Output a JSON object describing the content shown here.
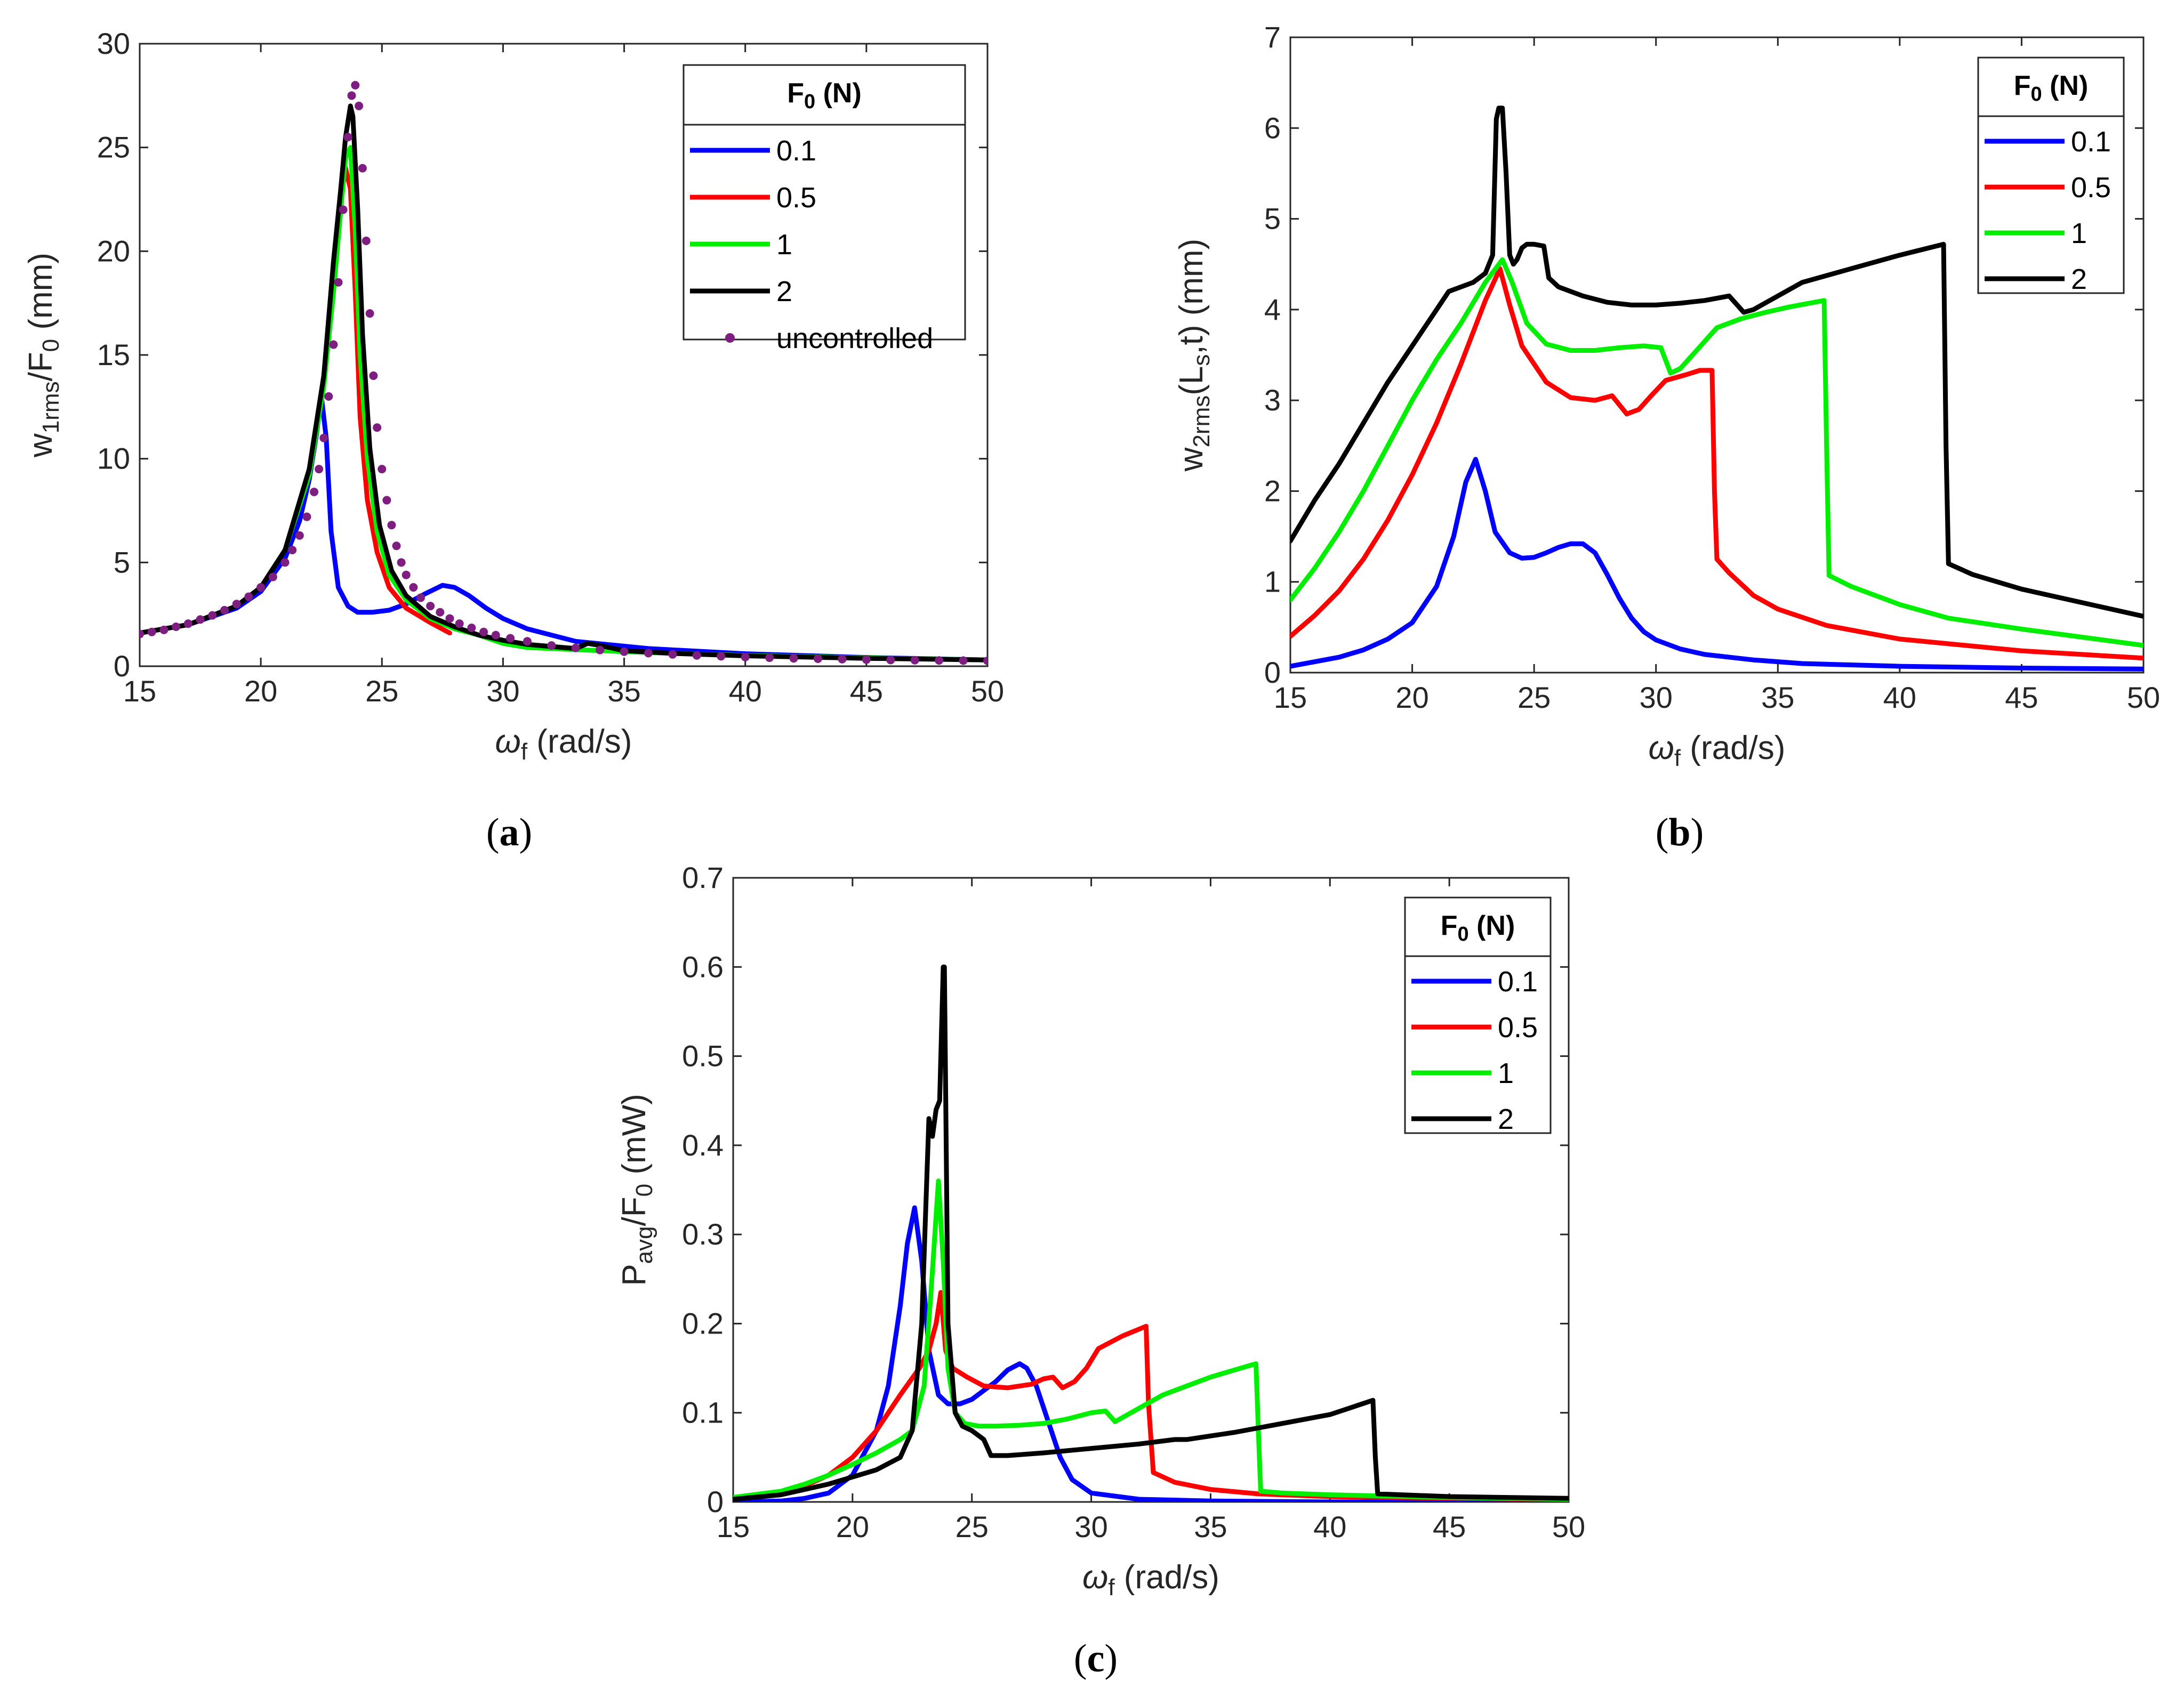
{
  "figure": {
    "captions": [
      {
        "open": "(",
        "label": "a",
        "close": ")"
      },
      {
        "open": "(",
        "label": "b",
        "close": ")"
      },
      {
        "open": "(",
        "label": "c",
        "close": ")"
      }
    ]
  },
  "legend": {
    "title_main": "F",
    "title_sub": "0",
    "title_unit": " (N)",
    "uncontrolled_label": "uncontrolled"
  },
  "colors": {
    "s01": "#0000ff",
    "s05": "#ff0000",
    "s1": "#00ee00",
    "s2": "#000000",
    "uncontrolled": "#7e1e80"
  },
  "chart_data": [
    {
      "id": "a",
      "type": "line",
      "title": "",
      "xlabel": {
        "main": "ω",
        "sub": "f",
        "rest": " (rad/s)"
      },
      "ylabel": {
        "main": "w",
        "sub": "1rms",
        "rest": "/F",
        "sub2": "0",
        "rest2": " (mm)"
      },
      "xlim": [
        15,
        50
      ],
      "ylim": [
        0,
        30
      ],
      "xticks": [
        15,
        20,
        25,
        30,
        35,
        40,
        45,
        50
      ],
      "yticks": [
        0,
        5,
        10,
        15,
        20,
        25,
        30
      ],
      "legend_position": "top-right",
      "series": [
        {
          "name": "0.1",
          "color_key": "s01",
          "x": [
            15,
            17,
            19,
            20,
            21,
            21.6,
            22,
            22.3,
            22.5,
            22.7,
            22.9,
            23.2,
            23.6,
            24,
            24.6,
            25.3,
            26,
            26.8,
            27.5,
            28,
            28.6,
            29.3,
            30,
            31,
            33,
            36,
            40,
            45,
            50
          ],
          "y": [
            1.6,
            2.0,
            2.8,
            3.6,
            5.2,
            7.0,
            9.0,
            11.2,
            13.0,
            11.0,
            6.5,
            3.8,
            2.9,
            2.6,
            2.6,
            2.7,
            3.0,
            3.5,
            3.9,
            3.8,
            3.4,
            2.8,
            2.3,
            1.8,
            1.2,
            0.85,
            0.6,
            0.42,
            0.3
          ]
        },
        {
          "name": "0.5",
          "color_key": "s05",
          "x": [
            15,
            17,
            19,
            20,
            21,
            22,
            22.6,
            23,
            23.3,
            23.5,
            23.7,
            23.9,
            24.1,
            24.4,
            24.8,
            25.3,
            26,
            27,
            27.8
          ],
          "y": [
            1.6,
            2.0,
            2.9,
            3.8,
            5.6,
            9.5,
            14.0,
            19.0,
            22.5,
            24.0,
            23.0,
            18.0,
            12.0,
            8.0,
            5.5,
            3.8,
            2.8,
            2.1,
            1.6
          ]
        },
        {
          "name": "1",
          "color_key": "s1",
          "x": [
            15,
            17,
            19,
            20,
            21,
            22,
            22.6,
            23,
            23.3,
            23.5,
            23.7,
            23.9,
            24.1,
            24.4,
            24.8,
            25.3,
            26,
            27,
            28,
            29,
            30,
            31,
            32,
            33,
            34,
            35,
            37,
            40,
            45,
            50
          ],
          "y": [
            1.6,
            2.0,
            2.9,
            3.8,
            5.6,
            9.2,
            13.5,
            18.0,
            22.0,
            24.5,
            25.0,
            21.0,
            15.0,
            10.0,
            6.5,
            4.4,
            3.2,
            2.3,
            1.8,
            1.5,
            1.1,
            0.9,
            0.85,
            0.8,
            0.75,
            0.7,
            0.62,
            0.52,
            0.4,
            0.3
          ]
        },
        {
          "name": "2",
          "color_key": "s2",
          "x": [
            15,
            17,
            19,
            20,
            21,
            22,
            22.6,
            23,
            23.3,
            23.5,
            23.7,
            23.8,
            24.0,
            24.2,
            24.5,
            24.9,
            25.4,
            26,
            27,
            28,
            29,
            30,
            31,
            32,
            33,
            33.5,
            34,
            35,
            37,
            40,
            45,
            50
          ],
          "y": [
            1.6,
            2.0,
            2.9,
            3.8,
            5.6,
            9.5,
            14.0,
            19.5,
            23.0,
            25.5,
            27.0,
            26.5,
            22.0,
            16.0,
            10.5,
            6.8,
            4.6,
            3.4,
            2.4,
            1.9,
            1.5,
            1.25,
            1.05,
            0.95,
            0.85,
            1.1,
            1.0,
            0.75,
            0.62,
            0.5,
            0.38,
            0.3
          ]
        }
      ],
      "scatter": {
        "name": "uncontrolled",
        "color_key": "uncontrolled",
        "x": [
          15,
          15.5,
          16,
          16.5,
          17,
          17.5,
          18,
          18.5,
          19,
          19.5,
          20,
          20.5,
          21,
          21.3,
          21.6,
          21.9,
          22.2,
          22.4,
          22.6,
          22.8,
          23.0,
          23.2,
          23.4,
          23.6,
          23.75,
          23.9,
          24.05,
          24.2,
          24.35,
          24.5,
          24.65,
          24.8,
          25.0,
          25.2,
          25.4,
          25.6,
          25.8,
          26.0,
          26.3,
          26.6,
          27.0,
          27.4,
          27.8,
          28.2,
          28.7,
          29.2,
          29.7,
          30.3,
          31,
          32,
          33,
          34,
          35,
          36,
          37,
          38,
          39,
          40,
          41,
          42,
          43,
          44,
          45,
          46,
          47,
          48,
          49,
          50
        ],
        "y": [
          1.55,
          1.65,
          1.75,
          1.9,
          2.05,
          2.25,
          2.45,
          2.7,
          3.0,
          3.35,
          3.8,
          4.3,
          5.0,
          5.6,
          6.3,
          7.2,
          8.4,
          9.5,
          11.0,
          13.0,
          15.5,
          18.5,
          22.0,
          25.5,
          27.5,
          28.0,
          27.0,
          24.0,
          20.5,
          17.0,
          14.0,
          11.5,
          9.5,
          8.0,
          6.8,
          5.8,
          5.0,
          4.4,
          3.8,
          3.3,
          2.9,
          2.6,
          2.3,
          2.05,
          1.85,
          1.65,
          1.5,
          1.35,
          1.2,
          1.0,
          0.88,
          0.78,
          0.7,
          0.63,
          0.57,
          0.52,
          0.48,
          0.44,
          0.41,
          0.38,
          0.36,
          0.34,
          0.32,
          0.3,
          0.29,
          0.28,
          0.27,
          0.26
        ]
      }
    },
    {
      "id": "b",
      "type": "line",
      "title": "",
      "xlabel": {
        "main": "ω",
        "sub": "f",
        "rest": " (rad/s)"
      },
      "ylabel": {
        "main": "w",
        "sub": "2rms",
        "rest": "(L",
        "sub2": "s",
        "rest2": ",t) (mm)"
      },
      "xlim": [
        15,
        50
      ],
      "ylim": [
        0,
        7
      ],
      "xticks": [
        15,
        20,
        25,
        30,
        35,
        40,
        45,
        50
      ],
      "yticks": [
        0,
        1,
        2,
        3,
        4,
        5,
        6,
        7
      ],
      "legend_position": "top-right",
      "series": [
        {
          "name": "0.1",
          "color_key": "s01",
          "x": [
            15,
            16,
            17,
            18,
            19,
            20,
            21,
            21.7,
            22.2,
            22.6,
            23.0,
            23.4,
            24,
            24.5,
            25,
            25.5,
            26,
            26.5,
            27,
            27.5,
            28,
            28.5,
            29,
            29.5,
            30,
            31,
            32,
            34,
            36,
            40,
            45,
            50
          ],
          "y": [
            0.07,
            0.12,
            0.17,
            0.25,
            0.37,
            0.55,
            0.95,
            1.5,
            2.1,
            2.35,
            2.0,
            1.55,
            1.32,
            1.26,
            1.27,
            1.32,
            1.38,
            1.42,
            1.42,
            1.32,
            1.08,
            0.82,
            0.6,
            0.45,
            0.36,
            0.26,
            0.2,
            0.14,
            0.1,
            0.07,
            0.05,
            0.04
          ]
        },
        {
          "name": "0.5",
          "color_key": "s05",
          "x": [
            15,
            16,
            17,
            18,
            19,
            20,
            21,
            22,
            23,
            23.6,
            24.0,
            24.5,
            25.5,
            26.5,
            27.5,
            28.2,
            28.8,
            29.3,
            29.8,
            30.4,
            31.2,
            31.8,
            32.3,
            32.4,
            32.5,
            33,
            34,
            35,
            37,
            40,
            45,
            50
          ],
          "y": [
            0.4,
            0.63,
            0.9,
            1.25,
            1.68,
            2.18,
            2.75,
            3.4,
            4.1,
            4.45,
            4.05,
            3.6,
            3.2,
            3.03,
            3.0,
            3.05,
            2.85,
            2.9,
            3.05,
            3.22,
            3.28,
            3.33,
            3.33,
            2.0,
            1.25,
            1.1,
            0.85,
            0.7,
            0.52,
            0.37,
            0.24,
            0.16
          ]
        },
        {
          "name": "1",
          "color_key": "s1",
          "x": [
            15,
            16,
            17,
            18,
            19,
            20,
            21,
            22,
            23,
            23.7,
            24.1,
            24.7,
            25.5,
            26.5,
            27.5,
            28.5,
            29.5,
            30.2,
            30.6,
            31.0,
            31.5,
            32.5,
            33.5,
            34.5,
            35.5,
            36.5,
            36.9,
            37.0,
            37.1,
            38,
            40,
            42,
            45,
            50
          ],
          "y": [
            0.8,
            1.15,
            1.55,
            2.0,
            2.5,
            3.0,
            3.45,
            3.85,
            4.3,
            4.55,
            4.3,
            3.85,
            3.62,
            3.55,
            3.55,
            3.58,
            3.6,
            3.58,
            3.3,
            3.35,
            3.5,
            3.8,
            3.9,
            3.97,
            4.03,
            4.08,
            4.1,
            2.5,
            1.07,
            0.95,
            0.75,
            0.6,
            0.48,
            0.3
          ]
        },
        {
          "name": "2",
          "color_key": "s2",
          "x": [
            15,
            16,
            17,
            18,
            19,
            20,
            21,
            21.5,
            22,
            22.5,
            23,
            23.3,
            23.45,
            23.55,
            23.7,
            23.85,
            24.0,
            24.15,
            24.3,
            24.5,
            24.7,
            25.0,
            25.4,
            25.6,
            26,
            27,
            28,
            29,
            30,
            31,
            32,
            33,
            33.6,
            34,
            35,
            36,
            38,
            40,
            41.8,
            41.9,
            42,
            43,
            45,
            50
          ],
          "y": [
            1.45,
            1.9,
            2.3,
            2.75,
            3.2,
            3.6,
            4.0,
            4.2,
            4.25,
            4.3,
            4.4,
            4.6,
            6.1,
            6.22,
            6.22,
            5.5,
            4.6,
            4.5,
            4.55,
            4.68,
            4.72,
            4.72,
            4.7,
            4.35,
            4.25,
            4.15,
            4.08,
            4.05,
            4.05,
            4.07,
            4.1,
            4.15,
            3.97,
            4.0,
            4.15,
            4.3,
            4.45,
            4.6,
            4.72,
            2.5,
            1.2,
            1.08,
            0.92,
            0.62
          ]
        }
      ]
    },
    {
      "id": "c",
      "type": "line",
      "title": "",
      "xlabel": {
        "main": "ω",
        "sub": "f",
        "rest": " (rad/s)"
      },
      "ylabel": {
        "main": "P",
        "sub": "avg",
        "rest": "/F",
        "sub2": "0",
        "rest2": " (mW)"
      },
      "xlim": [
        15,
        50
      ],
      "ylim": [
        0,
        0.7
      ],
      "xticks": [
        15,
        20,
        25,
        30,
        35,
        40,
        45,
        50
      ],
      "yticks": [
        0,
        0.1,
        0.2,
        0.3,
        0.4,
        0.5,
        0.6,
        0.7
      ],
      "legend_position": "top-right",
      "series": [
        {
          "name": "0.1",
          "color_key": "s01",
          "x": [
            15,
            17,
            18,
            19,
            20,
            21,
            21.5,
            22,
            22.3,
            22.6,
            22.9,
            23.2,
            23.6,
            24,
            24.5,
            25,
            25.5,
            26,
            26.5,
            27,
            27.3,
            27.7,
            28.2,
            28.7,
            29.2,
            30,
            32,
            35,
            40,
            45,
            50
          ],
          "y": [
            0,
            0.001,
            0.004,
            0.01,
            0.03,
            0.08,
            0.13,
            0.22,
            0.29,
            0.33,
            0.27,
            0.17,
            0.12,
            0.11,
            0.11,
            0.115,
            0.125,
            0.135,
            0.148,
            0.155,
            0.15,
            0.13,
            0.09,
            0.05,
            0.025,
            0.01,
            0.003,
            0.001,
            0,
            0,
            0
          ]
        },
        {
          "name": "0.5",
          "color_key": "s05",
          "x": [
            15,
            17,
            18,
            19,
            20,
            21,
            22,
            22.8,
            23.2,
            23.5,
            23.7,
            23.9,
            24.2,
            24.8,
            25.5,
            26.5,
            27.5,
            28,
            28.4,
            28.8,
            29.3,
            29.8,
            30.3,
            31.3,
            32.3,
            32.4,
            32.6,
            33.5,
            35,
            37,
            40,
            45,
            50
          ],
          "y": [
            0.003,
            0.01,
            0.018,
            0.03,
            0.05,
            0.08,
            0.12,
            0.15,
            0.17,
            0.2,
            0.235,
            0.17,
            0.15,
            0.14,
            0.13,
            0.128,
            0.132,
            0.138,
            0.14,
            0.128,
            0.135,
            0.15,
            0.172,
            0.186,
            0.197,
            0.11,
            0.033,
            0.022,
            0.014,
            0.009,
            0.006,
            0.004,
            0.003
          ]
        },
        {
          "name": "1",
          "color_key": "s1",
          "x": [
            15,
            17,
            18,
            19,
            20,
            21,
            22,
            22.5,
            23.0,
            23.3,
            23.6,
            23.8,
            24.0,
            24.3,
            24.7,
            25.3,
            26,
            27,
            28,
            29,
            30,
            30.6,
            31,
            32,
            33,
            34,
            35,
            36,
            36.9,
            37.0,
            37.1,
            38,
            40,
            45,
            50
          ],
          "y": [
            0.005,
            0.012,
            0.02,
            0.03,
            0.042,
            0.055,
            0.07,
            0.08,
            0.13,
            0.24,
            0.36,
            0.27,
            0.15,
            0.1,
            0.088,
            0.085,
            0.085,
            0.086,
            0.088,
            0.093,
            0.1,
            0.102,
            0.09,
            0.105,
            0.12,
            0.13,
            0.14,
            0.148,
            0.155,
            0.08,
            0.012,
            0.01,
            0.008,
            0.005,
            0.003
          ]
        },
        {
          "name": "2",
          "color_key": "s2",
          "x": [
            15,
            17,
            18,
            19,
            20,
            21,
            22,
            22.5,
            22.9,
            23.2,
            23.35,
            23.5,
            23.65,
            23.8,
            23.85,
            24.0,
            24.3,
            24.6,
            25,
            25.5,
            25.8,
            26.5,
            28,
            30,
            32,
            33.5,
            34,
            36,
            38,
            40,
            41.8,
            41.9,
            42,
            43,
            45,
            50
          ],
          "y": [
            0.003,
            0.008,
            0.014,
            0.02,
            0.028,
            0.036,
            0.05,
            0.08,
            0.2,
            0.43,
            0.41,
            0.44,
            0.45,
            0.6,
            0.6,
            0.2,
            0.1,
            0.085,
            0.08,
            0.07,
            0.052,
            0.052,
            0.055,
            0.06,
            0.065,
            0.07,
            0.07,
            0.078,
            0.088,
            0.098,
            0.114,
            0.05,
            0.009,
            0.008,
            0.006,
            0.004
          ]
        }
      ]
    }
  ]
}
